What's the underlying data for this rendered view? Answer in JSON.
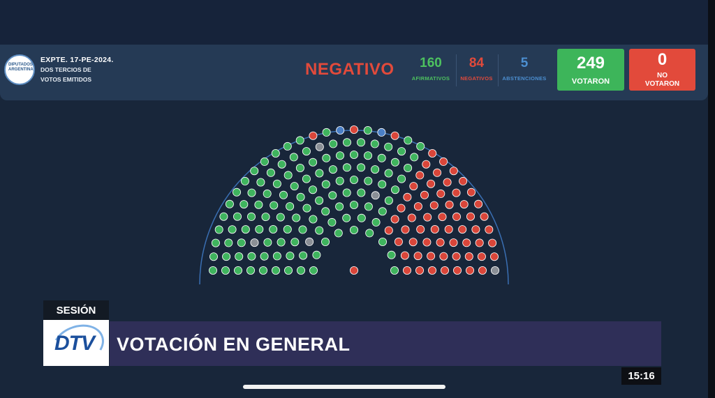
{
  "header": {
    "logo_text": "DIPUTADOS ARGENTINA",
    "expediente": "EXPTE. 17-PE-2024.",
    "mayoria_line1": "DOS TERCIOS DE",
    "mayoria_line2": "VOTOS EMITIDOS",
    "resultado": "NEGATIVO",
    "afirmativos": {
      "value": "160",
      "label": "AFIRMATIVOS"
    },
    "negativos": {
      "value": "84",
      "label": "NEGATIVOS"
    },
    "abstenciones": {
      "value": "5",
      "label": "ABSTENCIONES"
    },
    "votaron": {
      "value": "249",
      "label": "VOTARON"
    },
    "no_votaron": {
      "value": "0",
      "label_line1": "NO",
      "label_line2": "VOTARON"
    }
  },
  "hemicycle": {
    "colors": {
      "afirmativo": "#3fb45e",
      "negativo": "#d9463a",
      "abstencion": "#4a7fc6",
      "ausente": "#8a8f96"
    }
  },
  "lower_third": {
    "tag": "SESIÓN",
    "channel_logo": "DTV",
    "title": "VOTACIÓN EN GENERAL"
  },
  "clock": "15:16",
  "colors": {
    "background": "#18263a",
    "header": "#253a55",
    "title_bar": "#2f2f58"
  }
}
